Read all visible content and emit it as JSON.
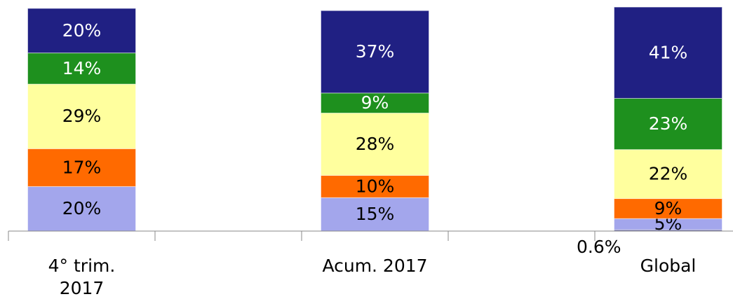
{
  "chart_data": {
    "type": "stacked_bar",
    "categories": [
      "4° trim.\n2017",
      null,
      "Acum. 2017",
      null,
      "Global"
    ],
    "ylim": [
      0,
      100
    ],
    "series": [
      {
        "color": "#6a6aa8",
        "values": [
          null,
          null,
          null,
          null,
          0.6
        ],
        "value_labels": [
          null,
          null,
          null,
          null,
          "0.6%"
        ]
      },
      {
        "color": "#a3a6ec",
        "values": [
          20,
          null,
          15,
          null,
          5
        ],
        "value_labels": [
          "20%",
          null,
          "15%",
          null,
          "5%"
        ]
      },
      {
        "color": "#ff6a00",
        "values": [
          17,
          null,
          10,
          null,
          9
        ],
        "value_labels": [
          "17%",
          null,
          "10%",
          null,
          "9%"
        ]
      },
      {
        "color": "#ffff9e",
        "values": [
          29,
          null,
          28,
          null,
          22
        ],
        "value_labels": [
          "29%",
          null,
          "28%",
          null,
          "22%"
        ]
      },
      {
        "color": "#1e901e",
        "values": [
          14,
          null,
          9,
          null,
          23
        ],
        "value_labels": [
          "14%",
          null,
          "9%",
          null,
          "23%"
        ]
      },
      {
        "color": "#202083",
        "values": [
          20,
          null,
          37,
          null,
          41
        ],
        "value_labels": [
          "20%",
          null,
          "37%",
          null,
          "41%"
        ]
      }
    ]
  }
}
